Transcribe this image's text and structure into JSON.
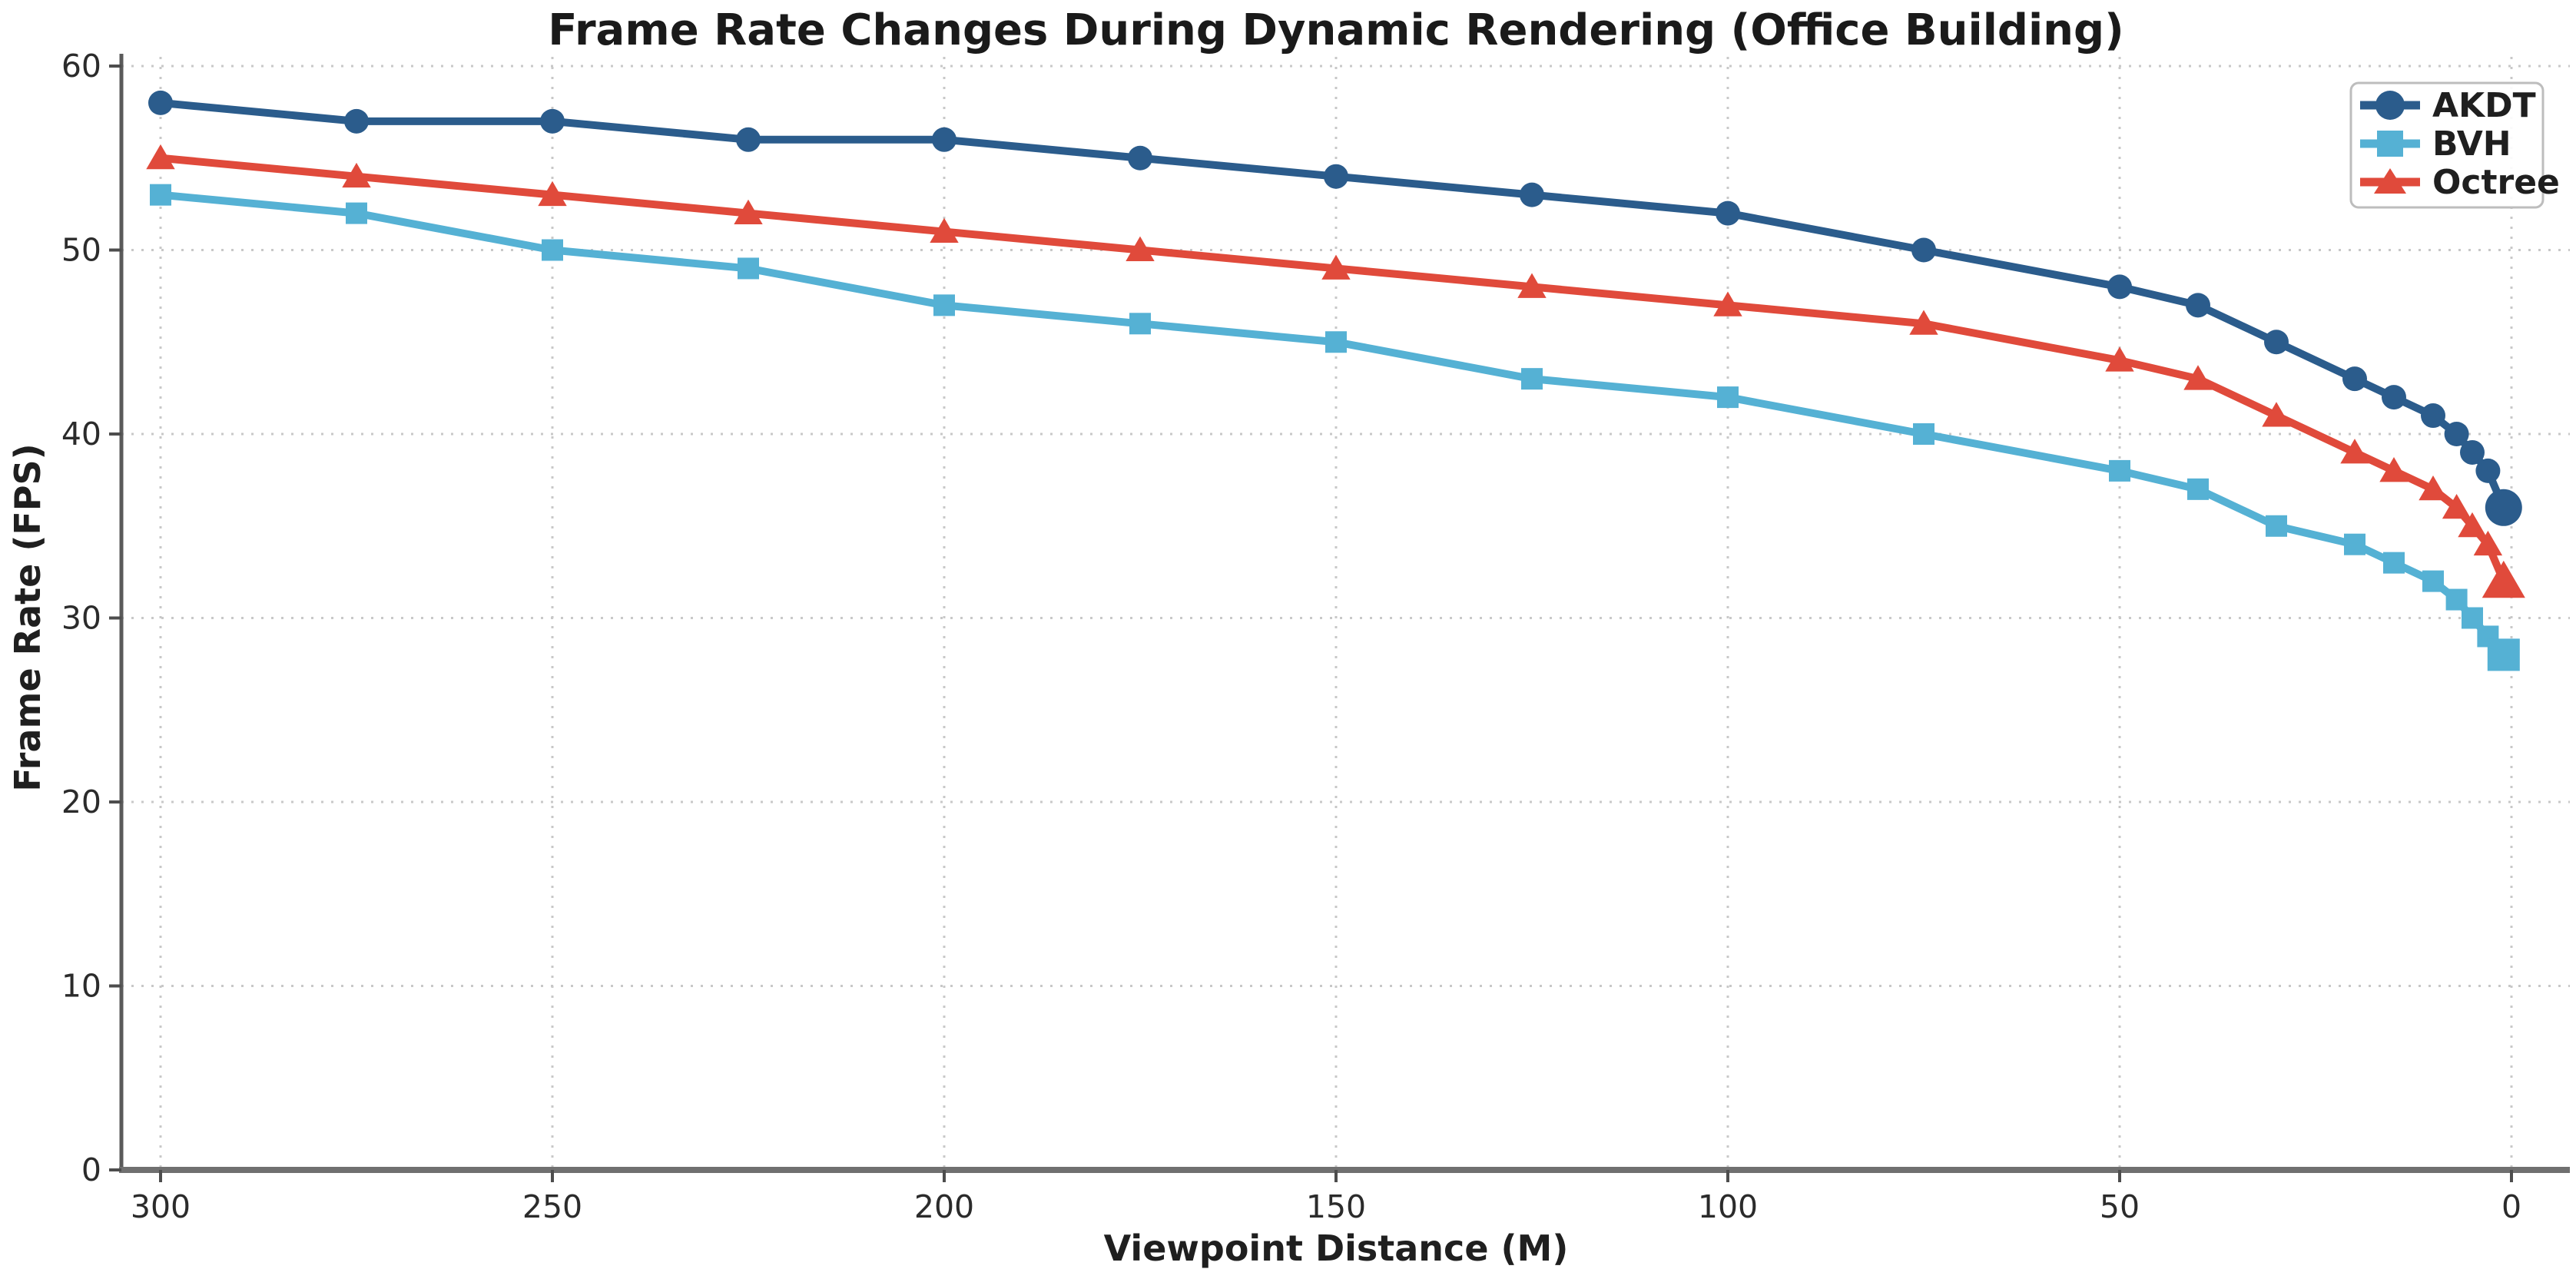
{
  "figure": {
    "background": "#ffffff"
  },
  "chart_data": {
    "type": "line",
    "title": "Frame Rate Changes During Dynamic Rendering (Office Building)",
    "xlabel": "Viewpoint Distance (M)",
    "ylabel": "Frame Rate (FPS)",
    "x": [
      300,
      275,
      250,
      225,
      200,
      175,
      150,
      125,
      100,
      75,
      50,
      40,
      30,
      20,
      15,
      10,
      7,
      5,
      3,
      1
    ],
    "x_axis": {
      "reversed": true,
      "ticks": [
        300,
        250,
        200,
        150,
        100,
        50,
        0
      ],
      "range": [
        305,
        -5
      ],
      "grid": true
    },
    "y_axis": {
      "ticks": [
        0,
        10,
        20,
        30,
        40,
        50,
        60
      ],
      "range": [
        0,
        60
      ],
      "grid": true
    },
    "series": [
      {
        "name": "AKDT",
        "marker": "circle",
        "color": "#2b5c8c",
        "values": [
          58,
          57,
          57,
          56,
          56,
          55,
          54,
          53,
          52,
          50,
          48,
          47,
          45,
          43,
          42,
          41,
          40,
          39,
          38,
          36
        ]
      },
      {
        "name": "BVH",
        "marker": "square",
        "color": "#55b1d4",
        "values": [
          53,
          52,
          50,
          49,
          47,
          46,
          45,
          43,
          42,
          40,
          38,
          37,
          35,
          34,
          33,
          32,
          31,
          30,
          29,
          28
        ]
      },
      {
        "name": "Octree",
        "marker": "triangle",
        "color": "#e04a3b",
        "values": [
          55,
          54,
          53,
          52,
          51,
          50,
          49,
          48,
          47,
          46,
          44,
          43,
          41,
          39,
          38,
          37,
          36,
          35,
          34,
          32
        ]
      }
    ],
    "legend": {
      "position": "upper right",
      "entries": [
        "AKDT",
        "BVH",
        "Octree"
      ]
    },
    "style": {
      "grid_color": "#c8c8c8",
      "spine_color": "#5a5a5a",
      "bottom_spine_color": "#707070",
      "tick_color": "#4d4d4d",
      "legend_border_color": "#bdbdbd",
      "legend_bg_color": "#ffffff"
    }
  }
}
